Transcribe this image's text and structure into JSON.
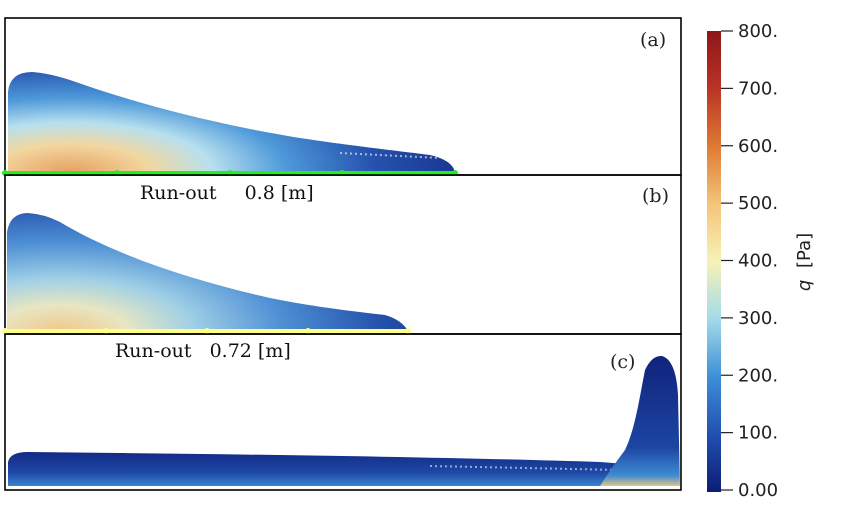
{
  "panels": [
    {
      "label": "(a)",
      "runout_prefix": "Run-out",
      "runout_value": "0.8 [m]",
      "line_color": "#22ee22"
    },
    {
      "label": "(b)",
      "runout_prefix": "Run-out",
      "runout_value": "0.72 [m]",
      "line_color": "#ffff88"
    },
    {
      "label": "(c)"
    }
  ],
  "colorbar": {
    "title_var": "q",
    "title_unit": "[Pa]",
    "ticks": [
      "800.",
      "700.",
      "600.",
      "500.",
      "400.",
      "300.",
      "200.",
      "100.",
      "0.00"
    ],
    "colormap": [
      "#0c1d75",
      "#2150b0",
      "#3e8fd8",
      "#a3dbe9",
      "#f7f2b6",
      "#f4c47a",
      "#de7a34",
      "#b93425",
      "#8e1619"
    ]
  }
}
